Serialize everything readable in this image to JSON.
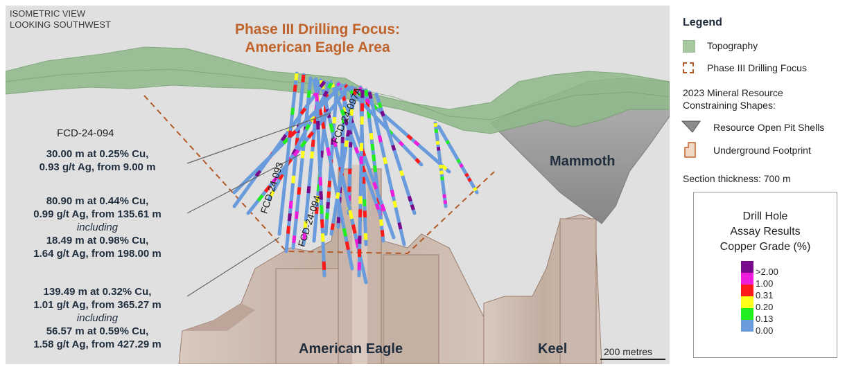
{
  "view_caption": [
    "ISOMETRIC VIEW",
    "LOOKING SOUTHWEST"
  ],
  "headline": [
    "Phase III Drilling Focus:",
    "American Eagle Area"
  ],
  "hole_id": "FCD-24-094",
  "intercepts": [
    {
      "lines": [
        "30.00 m at 0.25% Cu,",
        "0.93 g/t Ag, from 9.00 m"
      ]
    },
    {
      "lines": [
        "80.90 m at 0.44% Cu,",
        "0.99 g/t Ag, from 135.61 m",
        "including",
        "18.49 m at 0.98% Cu,",
        "1.64 g/t Ag, from 198.00 m"
      ]
    },
    {
      "lines": [
        "139.49 m at 0.32% Cu,",
        "1.01 g/t Ag, from 365.27 m",
        "including",
        "56.57 m at 0.59% Cu,",
        "1.58 g/t Ag, from 427.29 m"
      ]
    }
  ],
  "hole_labels": [
    "FCD-24-093",
    "FCD-24-094",
    "FCD-24-097A"
  ],
  "area_names": {
    "mammoth": "Mammoth",
    "american_eagle": "American Eagle",
    "keel": "Keel"
  },
  "scale_bar": "200 metres",
  "legend": {
    "title": "Legend",
    "topography": "Topography",
    "focus": "Phase III Drilling Focus",
    "resource_heading": [
      "2023 Mineral Resource",
      "Constraining Shapes:"
    ],
    "open_pit": "Resource Open Pit Shells",
    "underground": "Underground Footprint",
    "section_thickness": "Section thickness: 700 m",
    "grade_title": [
      "Drill Hole",
      "Assay Results",
      "Copper Grade (%)"
    ],
    "grades": [
      {
        "label": ">2.00",
        "color": "#7a0a8c"
      },
      {
        "label": "1.00",
        "color": "#ee1cdb"
      },
      {
        "label": "0.31",
        "color": "#ff1a1a"
      },
      {
        "label": "0.20",
        "color": "#ffff1a"
      },
      {
        "label": "0.13",
        "color": "#22ee22"
      },
      {
        "label": "0.00",
        "color": "#6a9bdc"
      }
    ]
  },
  "colors": {
    "topography": "#8fb98a",
    "drilling_focus": "#b45a26",
    "pit_shell": "#9a9a9a",
    "underground": "#cbb8ad"
  }
}
